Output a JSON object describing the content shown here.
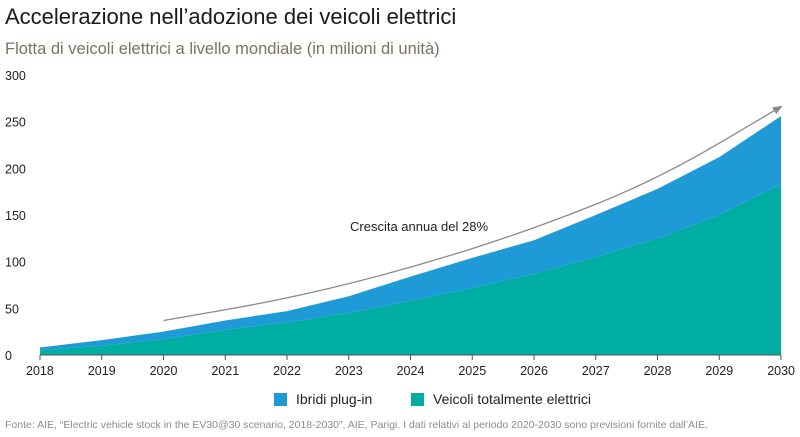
{
  "header": {
    "title": "Accelerazione nell’adozione dei veicoli elettrici",
    "subtitle": "Flotta di veicoli elettrici a livello mondiale (in milioni di unità)"
  },
  "legend": {
    "items": [
      {
        "label": "Ibridi plug-in",
        "color": "#1e9ad6"
      },
      {
        "label": "Veicoli totalmente elettrici",
        "color": "#00ada3"
      }
    ]
  },
  "source": "Fonte: AIE, “Electric vehicle stock in the EV30@30 scenario, 2018-2030”, AIE, Parigi. I dati relativi al periodo 2020-2030 sono previsioni fornite dall’AIE.",
  "chart_data": {
    "type": "area",
    "stacked": true,
    "x": [
      "2018",
      "2019",
      "2020",
      "2021",
      "2022",
      "2023",
      "2024",
      "2025",
      "2026",
      "2027",
      "2028",
      "2029",
      "2030"
    ],
    "series": [
      {
        "name": "Veicoli totalmente elettrici",
        "color": "#00ada3",
        "values": [
          5,
          10,
          17,
          27,
          35,
          45,
          58,
          72,
          87,
          105,
          125,
          150,
          183
        ]
      },
      {
        "name": "Ibridi plug-in",
        "color": "#1e9ad6",
        "values": [
          3,
          6,
          8,
          10,
          12,
          18,
          26,
          32,
          36,
          45,
          53,
          62,
          73
        ]
      }
    ],
    "ylim": [
      0,
      300
    ],
    "yticks": [
      0,
      50,
      100,
      150,
      200,
      250,
      300
    ],
    "grid": false,
    "legend_position": "bottom",
    "trend_annotation": {
      "label": "Crescita annua del 28%",
      "color": "#8a8a8a",
      "points": [
        [
          "2020",
          37
        ],
        [
          "2022",
          60
        ],
        [
          "2024",
          93
        ],
        [
          "2026",
          135
        ],
        [
          "2028",
          188
        ],
        [
          "2030",
          266
        ]
      ]
    }
  }
}
